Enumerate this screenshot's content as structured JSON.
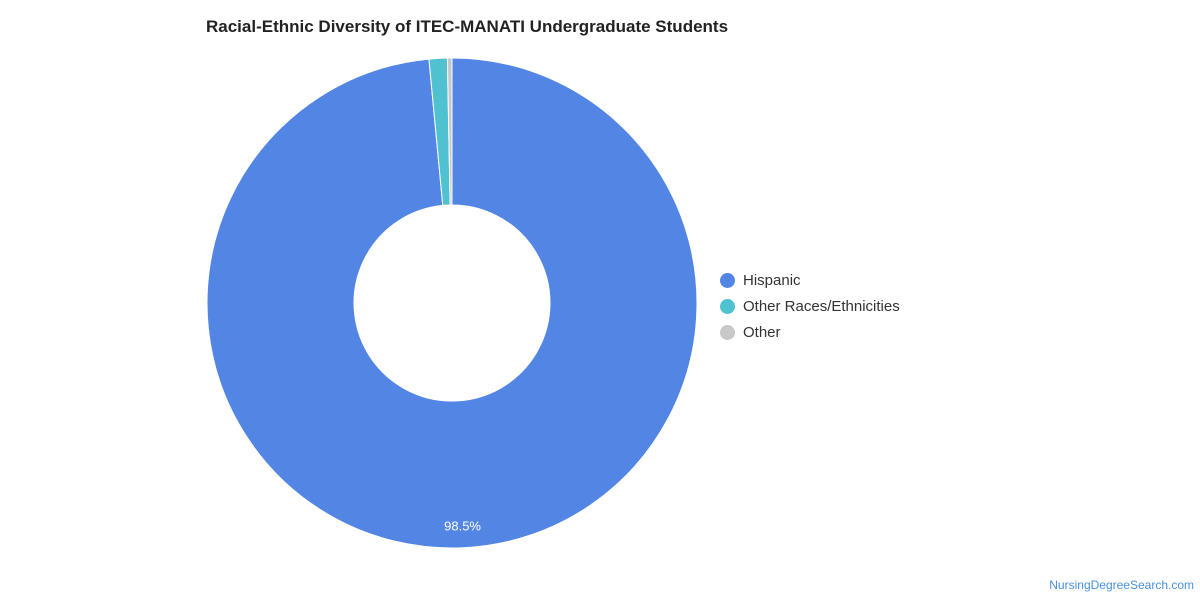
{
  "chart_data": {
    "type": "pie",
    "title": "Racial-Ethnic Diversity of ITEC-MANATI Undergraduate Students",
    "categories": [
      "Hispanic",
      "Other Races/Ethnicities",
      "Other"
    ],
    "values": [
      98.5,
      1.2,
      0.3
    ],
    "colors": [
      "#5386e4",
      "#4fc1d0",
      "#c8c8c8"
    ],
    "data_labels": [
      "98.5%",
      "",
      ""
    ],
    "donut": true,
    "legend_position": "right"
  },
  "credit": "NursingDegreeSearch.com"
}
